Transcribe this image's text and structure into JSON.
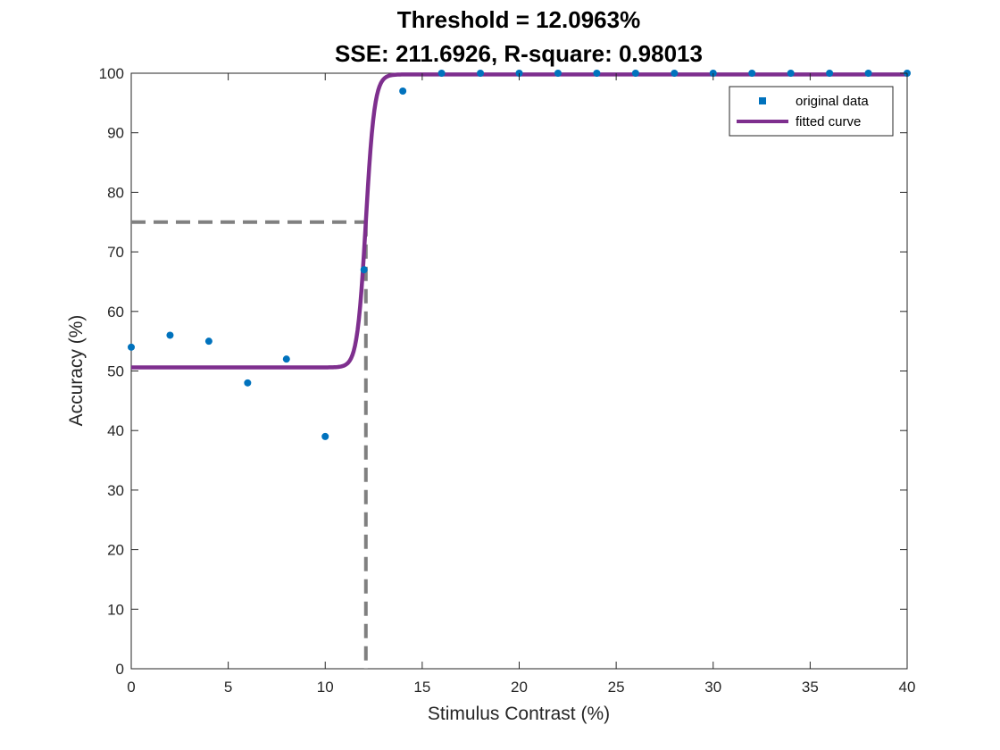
{
  "chart_data": {
    "type": "scatter",
    "title_lines": [
      "Threshold = 12.0963%",
      "SSE: 211.6926, R-square: 0.98013"
    ],
    "xlabel": "Stimulus Contrast (%)",
    "ylabel": "Accuracy (%)",
    "xlim": [
      0,
      40
    ],
    "ylim": [
      0,
      100
    ],
    "xticks": [
      0,
      5,
      10,
      15,
      20,
      25,
      30,
      35,
      40
    ],
    "yticks": [
      0,
      10,
      20,
      30,
      40,
      50,
      60,
      70,
      80,
      90,
      100
    ],
    "grid": false,
    "legend_position": "top-right",
    "legend": [
      "original data",
      "fitted curve"
    ],
    "series": [
      {
        "name": "original data",
        "kind": "points",
        "color": "#0072BD",
        "x": [
          0,
          2,
          4,
          6,
          8,
          10,
          12,
          14,
          16,
          18,
          20,
          22,
          24,
          26,
          28,
          30,
          32,
          34,
          36,
          38,
          40
        ],
        "y": [
          54,
          56,
          55,
          48,
          52,
          39,
          67,
          97,
          100,
          100,
          100,
          100,
          100,
          100,
          100,
          100,
          100,
          100,
          100,
          100,
          100
        ]
      },
      {
        "name": "fitted curve",
        "kind": "sigmoid",
        "color": "#7E2F8E",
        "lower": 50.6,
        "upper": 99.8,
        "midpoint": 12.0963,
        "slope": 4.5
      }
    ],
    "reference_lines": {
      "threshold_x": 12.0963,
      "threshold_y": 75,
      "color": "#808080"
    }
  }
}
